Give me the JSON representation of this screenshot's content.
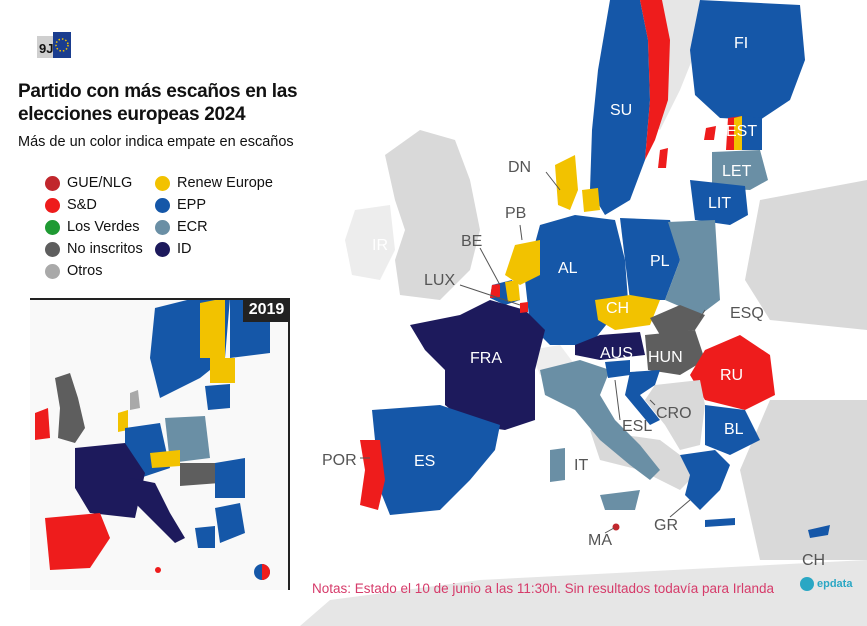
{
  "header": {
    "logo_text": "9J",
    "title": "Partido con más escaños en las elecciones europeas 2024",
    "subtitle": "Más de un color indica empate en escaños"
  },
  "colors": {
    "gue_nlg": "#c1272d",
    "sd": "#ee1c1c",
    "verdes": "#1f9a33",
    "no_inscritos": "#5e5e5e",
    "otros": "#a9a9a9",
    "renew": "#f2c200",
    "epp": "#1557a8",
    "ecr": "#6a8fa5",
    "id": "#1d1a5c",
    "land_other": "#d9d9d9",
    "sea": "#ffffff"
  },
  "legend": [
    {
      "label": "GUE/NLG",
      "color": "#c1272d"
    },
    {
      "label": "S&D",
      "color": "#ee1c1c"
    },
    {
      "label": "Los Verdes",
      "color": "#1f9a33"
    },
    {
      "label": "No inscritos",
      "color": "#5e5e5e"
    },
    {
      "label": "Otros",
      "color": "#a9a9a9"
    },
    {
      "label": "Renew Europe",
      "color": "#f2c200"
    },
    {
      "label": "EPP",
      "color": "#1557a8"
    },
    {
      "label": "ECR",
      "color": "#6a8fa5"
    },
    {
      "label": "ID",
      "color": "#1d1a5c"
    }
  ],
  "inset": {
    "year": "2019"
  },
  "country_labels": {
    "FI": "FI",
    "SU": "SU",
    "EST": "EST",
    "LET": "LET",
    "LIT": "LIT",
    "DN": "DN",
    "PB": "PB",
    "BE": "BE",
    "LUX": "LUX",
    "IR": "IR",
    "AL": "AL",
    "PL": "PL",
    "CH": "CH",
    "ESQ": "ESQ",
    "AUS": "AUS",
    "HUN": "HUN",
    "RU": "RU",
    "FRA": "FRA",
    "CRO": "CRO",
    "ESL": "ESL",
    "BL": "BL",
    "IT": "IT",
    "ES": "ES",
    "POR": "POR",
    "GR": "GR",
    "MA": "MA",
    "CH2": "CH"
  },
  "note": "Notas: Estado el 10 de junio a las 11:30h. Sin resultados todavía para Irlanda",
  "source_logo": "epdata"
}
